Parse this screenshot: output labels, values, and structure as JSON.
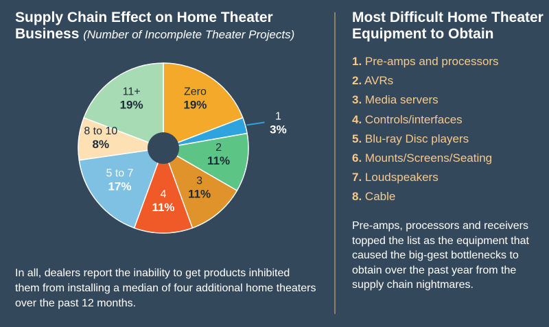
{
  "left": {
    "title": "Supply Chain Effect on Home Theater Business",
    "subtitle": "(Number of Incomplete Theater Projects)",
    "note": "In all, dealers report the inability to get products inhibited them from installing a median of four additional home theaters over the past 12 months."
  },
  "right": {
    "title": "Most Difficult Home Theater Equipment to Obtain",
    "items": [
      {
        "num": "1.",
        "label": "Pre-amps and processors"
      },
      {
        "num": "2.",
        "label": "AVRs"
      },
      {
        "num": "3.",
        "label": "Media servers"
      },
      {
        "num": "4.",
        "label": "Controls/interfaces"
      },
      {
        "num": "5.",
        "label": "Blu-ray Disc players"
      },
      {
        "num": "6.",
        "label": "Mounts/Screens/Seating"
      },
      {
        "num": "7.",
        "label": "Loudspeakers"
      },
      {
        "num": "8.",
        "label": "Cable"
      }
    ],
    "note": "Pre-amps, processors and receivers topped the list as the equipment that caused the big-gest bottlenecks to obtain over the past year from the supply chain nightmares."
  },
  "chart_data": {
    "type": "pie",
    "donut": true,
    "start": "12 o'clock, clockwise",
    "slices": [
      {
        "label": "Zero",
        "value": 19,
        "display": "19%",
        "color": "#f4a92b"
      },
      {
        "label": "1",
        "value": 3,
        "display": "3%",
        "color": "#2ea3dd",
        "callout": true
      },
      {
        "label": "2",
        "value": 11,
        "display": "11%",
        "color": "#5cc485"
      },
      {
        "label": "3",
        "value": 11,
        "display": "11%",
        "color": "#e0932a"
      },
      {
        "label": "4",
        "value": 11,
        "display": "11%",
        "color": "#f05a28"
      },
      {
        "label": "5 to 7",
        "value": 17,
        "display": "17%",
        "color": "#7ec1e3"
      },
      {
        "label": "8 to 10",
        "value": 8,
        "display": "8%",
        "color": "#fde1b4"
      },
      {
        "label": "11+",
        "value": 19,
        "display": "19%",
        "color": "#a6dbb3"
      }
    ]
  }
}
